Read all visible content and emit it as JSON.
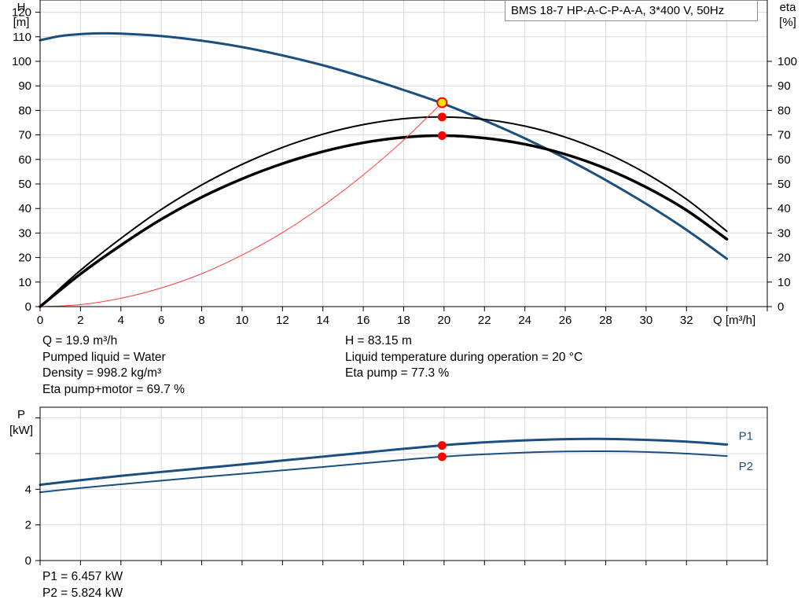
{
  "title": "BMS 18-7 HP-A-C-P-A-A, 3*400 V, 50Hz",
  "colors": {
    "head_curve": "#1a4f80",
    "efficiency_curve": "#000000",
    "system_curve": "#ff3b3b",
    "power_curve": "#1a4f80",
    "grid": "#d9d9d9",
    "operating_point": "#ff0000",
    "duty_point_fill": "#ffe400"
  },
  "duty_info": {
    "left": [
      "Q = 19.9 m³/h",
      "Pumped liquid = Water",
      "Density = 998.2 kg/m³",
      "Eta pump+motor = 69.7 %"
    ],
    "right": [
      "H = 83.15 m",
      "Liquid temperature during operation = 20 °C",
      "Eta pump = 77.3 %"
    ]
  },
  "power_info": [
    "P1 = 6.457 kW",
    "P2 = 5.824 kW"
  ],
  "chart_data": [
    {
      "type": "line",
      "title": "BMS 18-7 HP-A-C-P-A-A, 3*400 V, 50Hz",
      "xlabel": "Q [m³/h]",
      "ylabel": "H [m]",
      "ylabel_lines": [
        "H",
        "[m]"
      ],
      "y2label": "eta [%]",
      "y2label_lines": [
        "eta",
        "[%]"
      ],
      "xlim": [
        0,
        36
      ],
      "ylim": [
        0,
        125
      ],
      "y2lim": [
        0,
        125
      ],
      "xticks": [
        0,
        2,
        4,
        6,
        8,
        10,
        12,
        14,
        16,
        18,
        20,
        22,
        24,
        26,
        28,
        30,
        32,
        34,
        36
      ],
      "xtick_labels": [
        "0",
        "2",
        "4",
        "6",
        "8",
        "10",
        "12",
        "14",
        "16",
        "18",
        "20",
        "22",
        "24",
        "26",
        "28",
        "30",
        "32",
        "",
        ""
      ],
      "yticks": [
        0,
        10,
        20,
        30,
        40,
        50,
        60,
        70,
        80,
        90,
        100,
        110,
        120
      ],
      "y2ticks": [
        0,
        10,
        20,
        30,
        40,
        50,
        60,
        70,
        80,
        90,
        100
      ],
      "grid": true,
      "series": [
        {
          "role": "head",
          "axis": "left",
          "width": 3,
          "x": [
            0,
            1,
            2,
            3,
            4,
            6,
            8,
            10,
            12,
            14,
            16,
            18,
            20,
            22,
            24,
            26,
            28,
            30,
            32,
            34
          ],
          "y": [
            108.6,
            110.3,
            111.1,
            111.4,
            111.3,
            110.3,
            108.4,
            105.8,
            102.4,
            98.4,
            93.6,
            88.3,
            82.6,
            75.9,
            68.6,
            60.5,
            51.6,
            41.9,
            31.3,
            19.5
          ]
        },
        {
          "role": "eta_pump",
          "axis": "right",
          "width": 2,
          "x": [
            0,
            2,
            4,
            6,
            8,
            10,
            12,
            14,
            16,
            18,
            20,
            22,
            24,
            26,
            28,
            30,
            32,
            34
          ],
          "y": [
            0,
            14.8,
            27.8,
            39.6,
            49.6,
            58.0,
            64.9,
            70.3,
            74.2,
            76.6,
            77.3,
            76.3,
            73.6,
            69.1,
            62.7,
            54.3,
            43.8,
            30.7
          ]
        },
        {
          "role": "eta_total",
          "axis": "right",
          "width": 3.5,
          "x": [
            0,
            2,
            4,
            6,
            8,
            10,
            12,
            14,
            16,
            18,
            20,
            22,
            24,
            26,
            28,
            30,
            32,
            34
          ],
          "y": [
            0,
            13.3,
            25.0,
            35.6,
            44.6,
            52.1,
            58.3,
            63.2,
            66.8,
            69.0,
            69.7,
            68.7,
            66.2,
            62.1,
            56.3,
            48.7,
            39.3,
            27.5
          ]
        },
        {
          "role": "system",
          "axis": "left",
          "width": 1,
          "x": [
            0,
            2,
            4,
            6,
            8,
            10,
            12,
            14,
            16,
            18,
            19.9
          ],
          "y": [
            0,
            0.8,
            3.4,
            7.6,
            13.4,
            21.0,
            30.2,
            41.1,
            53.7,
            67.9,
            83.15
          ]
        }
      ],
      "points": [
        {
          "role": "duty",
          "axis": "left",
          "x": 19.9,
          "y": 83.15
        },
        {
          "role": "eta_pump",
          "axis": "right",
          "x": 19.9,
          "y": 77.3
        },
        {
          "role": "eta_total",
          "axis": "right",
          "x": 19.9,
          "y": 69.7
        }
      ]
    },
    {
      "type": "line",
      "ylabel": "P [kW]",
      "ylabel_lines": [
        "P",
        "[kW]"
      ],
      "xlim": [
        0,
        36
      ],
      "ylim": [
        0,
        8.6
      ],
      "yticks": [
        0,
        2,
        4,
        6,
        8
      ],
      "ytick_labels": [
        "0",
        "2",
        "4",
        "",
        ""
      ],
      "grid": true,
      "series": [
        {
          "name": "P1",
          "width": 3,
          "x": [
            0,
            2,
            4,
            6,
            8,
            10,
            12,
            14,
            16,
            18,
            20,
            22,
            24,
            26,
            28,
            30,
            32,
            34
          ],
          "y": [
            4.25,
            4.51,
            4.75,
            4.97,
            5.18,
            5.39,
            5.61,
            5.83,
            6.05,
            6.27,
            6.47,
            6.63,
            6.74,
            6.81,
            6.82,
            6.77,
            6.67,
            6.51
          ]
        },
        {
          "name": "P2",
          "width": 2,
          "x": [
            0,
            2,
            4,
            6,
            8,
            10,
            12,
            14,
            16,
            18,
            20,
            22,
            24,
            26,
            28,
            30,
            32,
            34
          ],
          "y": [
            3.83,
            4.07,
            4.28,
            4.48,
            4.68,
            4.87,
            5.06,
            5.25,
            5.45,
            5.65,
            5.83,
            5.96,
            6.06,
            6.12,
            6.13,
            6.09,
            6.0,
            5.86
          ]
        }
      ],
      "points": [
        {
          "x": 19.9,
          "y": 6.457
        },
        {
          "x": 19.9,
          "y": 5.824
        }
      ]
    }
  ]
}
